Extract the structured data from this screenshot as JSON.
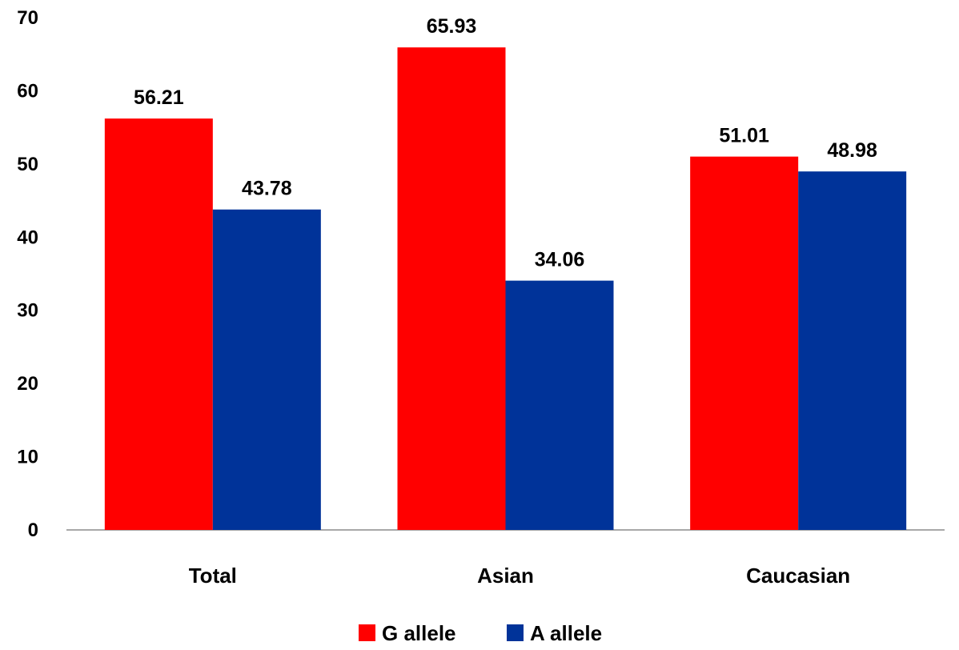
{
  "chart_data": {
    "type": "bar",
    "title": "",
    "xlabel": "",
    "ylabel": "",
    "categories": [
      "Total",
      "Asian",
      "Caucasian"
    ],
    "series": [
      {
        "name": "G allele",
        "color": "#ff0000",
        "values": [
          56.21,
          65.93,
          51.01
        ],
        "labels": [
          "56.21",
          "65.93",
          "51.01"
        ]
      },
      {
        "name": "A allele",
        "color": "#003399",
        "values": [
          43.78,
          34.06,
          48.98
        ],
        "labels": [
          "43.78",
          "34.06",
          "48.98"
        ]
      }
    ],
    "ylim": [
      0,
      70
    ],
    "yticks": [
      "0",
      "10",
      "20",
      "30",
      "40",
      "50",
      "60",
      "70"
    ],
    "grid": false,
    "legend_position": "bottom"
  }
}
